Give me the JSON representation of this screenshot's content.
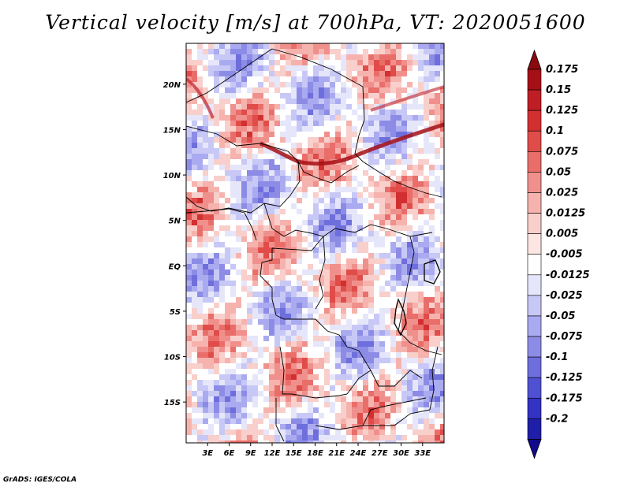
{
  "title": "Vertical velocity [m/s] at 700hPa, VT: 2020051600",
  "credit": "GrADS: IGES/COLA",
  "map": {
    "lat_range": [
      -19.5,
      24.5
    ],
    "lon_range": [
      0,
      36
    ],
    "lat_ticks": [
      {
        "value": 20,
        "label": "20N"
      },
      {
        "value": 15,
        "label": "15N"
      },
      {
        "value": 10,
        "label": "10N"
      },
      {
        "value": 5,
        "label": "5N"
      },
      {
        "value": 0,
        "label": "EQ"
      },
      {
        "value": -5,
        "label": "5S"
      },
      {
        "value": -10,
        "label": "10S"
      },
      {
        "value": -15,
        "label": "15S"
      }
    ],
    "lon_ticks": [
      {
        "value": 3,
        "label": "3E"
      },
      {
        "value": 6,
        "label": "6E"
      },
      {
        "value": 9,
        "label": "9E"
      },
      {
        "value": 12,
        "label": "12E"
      },
      {
        "value": 15,
        "label": "15E"
      },
      {
        "value": 18,
        "label": "18E"
      },
      {
        "value": 21,
        "label": "21E"
      },
      {
        "value": 24,
        "label": "24E"
      },
      {
        "value": 27,
        "label": "27E"
      },
      {
        "value": 30,
        "label": "30E"
      },
      {
        "value": 33,
        "label": "33E"
      }
    ]
  },
  "colorbar": {
    "levels": [
      {
        "label": "0.175",
        "color": "#a50f15"
      },
      {
        "label": "0.15",
        "color": "#be1e24"
      },
      {
        "label": "0.125",
        "color": "#d22f30"
      },
      {
        "label": "0.1",
        "color": "#e04c49"
      },
      {
        "label": "0.075",
        "color": "#e96e6a"
      },
      {
        "label": "0.05",
        "color": "#f0908c"
      },
      {
        "label": "0.025",
        "color": "#f6b3ae"
      },
      {
        "label": "0.0125",
        "color": "#f9cfcb"
      },
      {
        "label": "0.005",
        "color": "#fce6e3"
      },
      {
        "label": "-0.005",
        "color": "#ffffff"
      },
      {
        "label": "-0.0125",
        "color": "#e6e6fa"
      },
      {
        "label": "-0.025",
        "color": "#c8c8f6"
      },
      {
        "label": "-0.05",
        "color": "#aaaaf0"
      },
      {
        "label": "-0.075",
        "color": "#8c8ce6"
      },
      {
        "label": "-0.1",
        "color": "#6e6edc"
      },
      {
        "label": "-0.125",
        "color": "#5050d2"
      },
      {
        "label": "-0.175",
        "color": "#3232c3"
      },
      {
        "label": "-0.2",
        "color": "#1e1ea8"
      }
    ],
    "top_extension_color": "#8b0a10",
    "bottom_extension_color": "#100a8c"
  }
}
